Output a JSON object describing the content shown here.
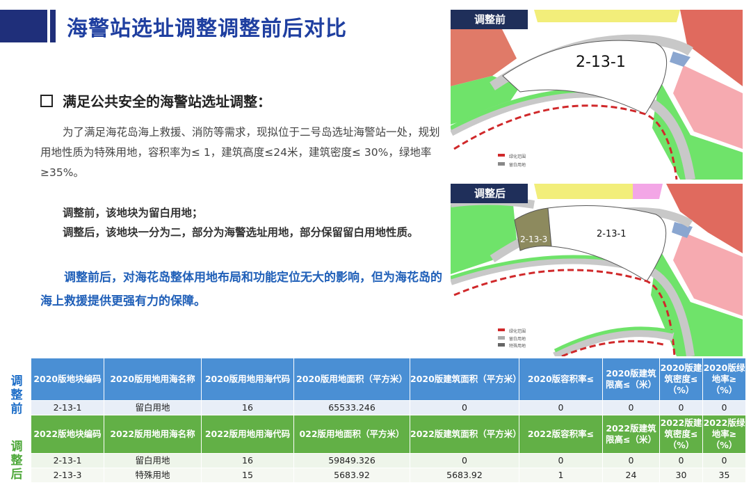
{
  "page": {
    "title": "海警站选址调整调整前后对比",
    "heading": "满足公共安全的海警站选址调整：",
    "paragraph": "为了满足海花岛海上救援、消防等需求，现拟位于二号岛选址海警站一处，规划用地性质为特殊用地，容积率为≤ 1，建筑高度≤24米，建筑密度≤ 30%，绿地率≥35%。",
    "before_line": "调整前，该地块为留白用地；",
    "after_line": "调整后，该地块一分为二，部分为海警选址用地，部分保留留白用地性质。",
    "conclusion": "调整前后，对海花岛整体用地布局和功能定位无大的影响，但为海花岛的海上救援提供更强有力的保障。"
  },
  "maps": {
    "before": {
      "tag": "调整前",
      "parcel_label": "2-13-1",
      "legend": [
        "绿化范围",
        "留白用地"
      ]
    },
    "after": {
      "tag": "调整后",
      "parcel_label_main": "2-13-1",
      "parcel_label_new": "2-13-3",
      "legend": [
        "绿化范围",
        "留白用地",
        "特殊用地"
      ]
    }
  },
  "table": {
    "side_before": "调整前",
    "side_after": "调整后",
    "before_headers": [
      "2020版地块编码",
      "2020版用地用海名称",
      "2020版用地用海代码",
      "2020版用地面积（平方米）",
      "2020版建筑面积（平方米）",
      "2020版容积率≤",
      "2020版建筑限高≤（米）",
      "2020版建筑密度≤（%）",
      "2020版绿地率≥（%）"
    ],
    "before_rows": [
      [
        "2-13-1",
        "留白用地",
        "16",
        "65533.246",
        "0",
        "0",
        "0",
        "0",
        "0"
      ]
    ],
    "after_headers": [
      "2022版地块编码",
      "2022版用地用海名称",
      "2022版用地用海代码",
      "022版用地面积（平方米）",
      "2022版建筑面积（平方米）",
      "2022版容积率≤",
      "2022版建筑限高≤（米）",
      "2022版建筑密度≤（%）",
      "2022版绿地率≥（%）"
    ],
    "after_rows": [
      [
        "2-13-1",
        "留白用地",
        "16",
        "59849.326",
        "0",
        "0",
        "0",
        "0",
        "0"
      ],
      [
        "2-13-3",
        "特殊用地",
        "15",
        "5683.92",
        "5683.92",
        "1",
        "24",
        "30",
        "35"
      ]
    ]
  },
  "colors": {
    "title": "#1f3fa0",
    "conclusion": "#1f5fb8",
    "header_before": "#4a8fd4",
    "header_after": "#62b046",
    "green_space": "#6fe36a",
    "special_land": "#8d8a5e",
    "residential_pink": "#f6aab0",
    "commercial_red": "#e06a5e",
    "yellow": "#f2ee7a",
    "magenta": "#f3a6e6"
  }
}
